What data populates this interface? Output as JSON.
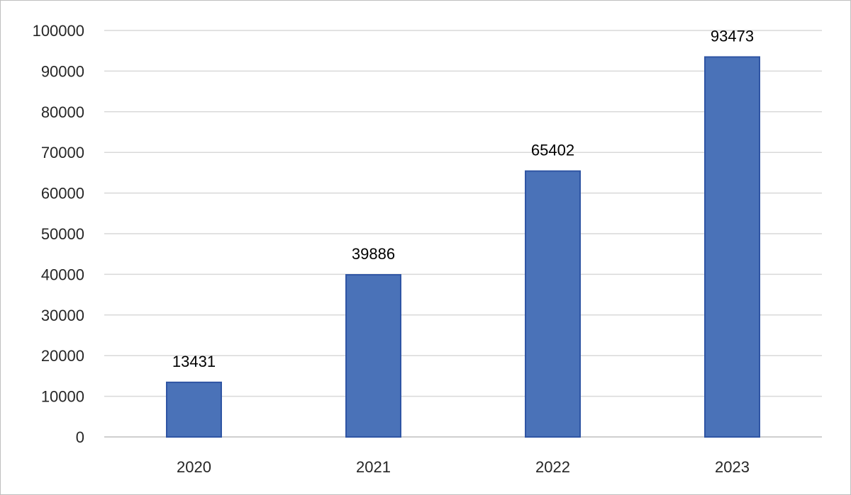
{
  "chart_data": {
    "type": "bar",
    "title": "",
    "xlabel": "",
    "ylabel": "",
    "categories": [
      "2020",
      "2021",
      "2022",
      "2023"
    ],
    "series": [
      {
        "values": [
          13431,
          39886,
          65402,
          93473
        ]
      }
    ],
    "data_labels": [
      "13431",
      "39886",
      "65402",
      "93473"
    ],
    "ylim": [
      0,
      100000
    ],
    "yticks": [
      "0",
      "10000",
      "20000",
      "30000",
      "40000",
      "50000",
      "60000",
      "70000",
      "80000",
      "90000",
      "100000"
    ],
    "grid": true,
    "legend": "none",
    "colors": {
      "bar_fill": "#4a72b8",
      "bar_stroke": "#2f55a4",
      "grid": "#d9d9d9",
      "axis": "#bfbfbf"
    }
  }
}
